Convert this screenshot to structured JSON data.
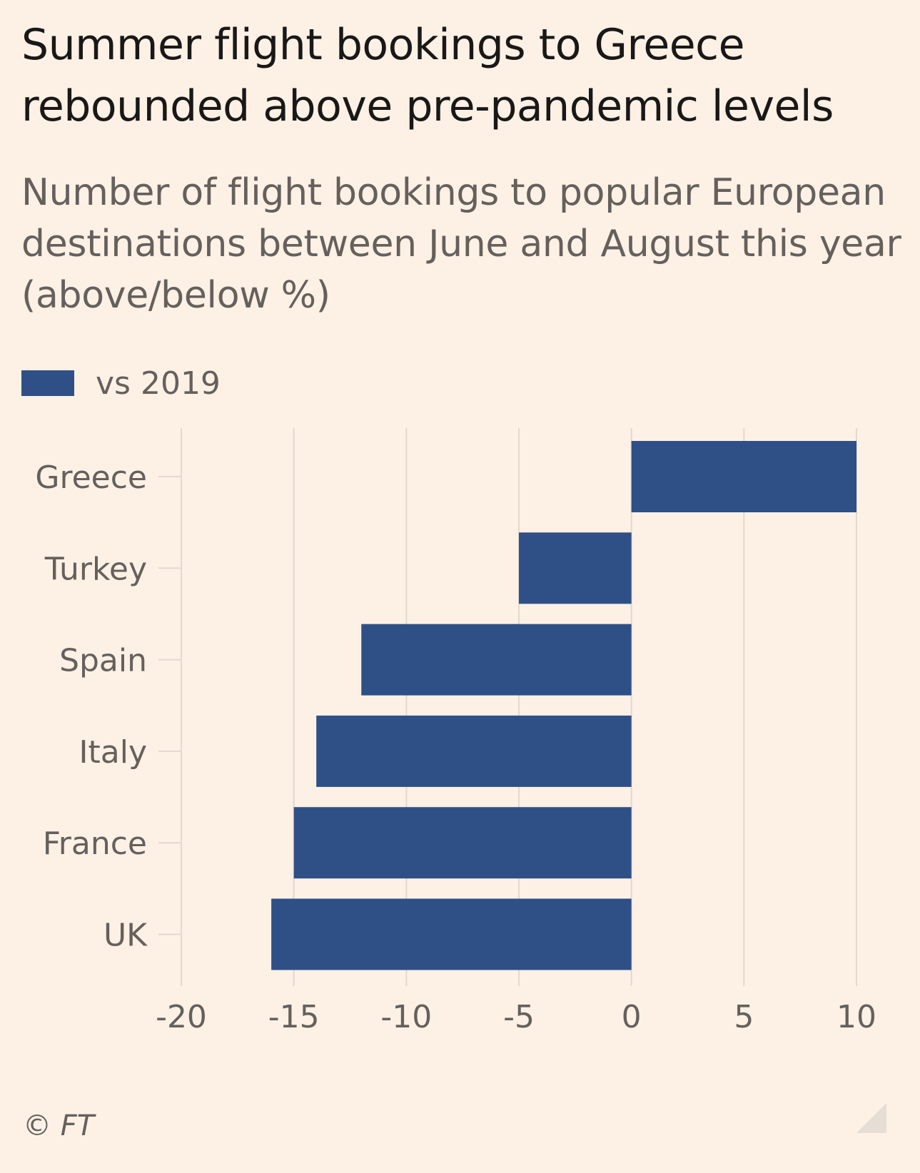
{
  "header": {
    "title": "Summer flight bookings to Greece rebounded above pre-pandemic levels",
    "subtitle": "Number of flight bookings to popular European destinations between June and August this year (above/below %)"
  },
  "footer": {
    "source": "© FT"
  },
  "colors": {
    "bar": "#2e5086",
    "grid": "#e3d9cf",
    "text": "#66605c",
    "background": "#fdf1e6"
  },
  "chart_data": {
    "type": "bar",
    "orientation": "horizontal",
    "title": "Summer flight bookings to Greece rebounded above pre-pandemic levels",
    "subtitle": "Number of flight bookings to popular European destinations between June and August this year (above/below %)",
    "xlabel": "",
    "ylabel": "",
    "categories": [
      "Greece",
      "Turkey",
      "Spain",
      "Italy",
      "France",
      "UK"
    ],
    "series": [
      {
        "name": "vs 2019",
        "values": [
          10,
          -5,
          -12,
          -14,
          -15,
          -16
        ]
      }
    ],
    "xlim": [
      -20,
      10
    ],
    "xticks": [
      -20,
      -15,
      -10,
      -5,
      0,
      5,
      10
    ],
    "xtick_labels": [
      "-20",
      "-15",
      "-10",
      "-5",
      "0",
      "5",
      "10"
    ],
    "grid": true,
    "legend_position": "top-left"
  }
}
